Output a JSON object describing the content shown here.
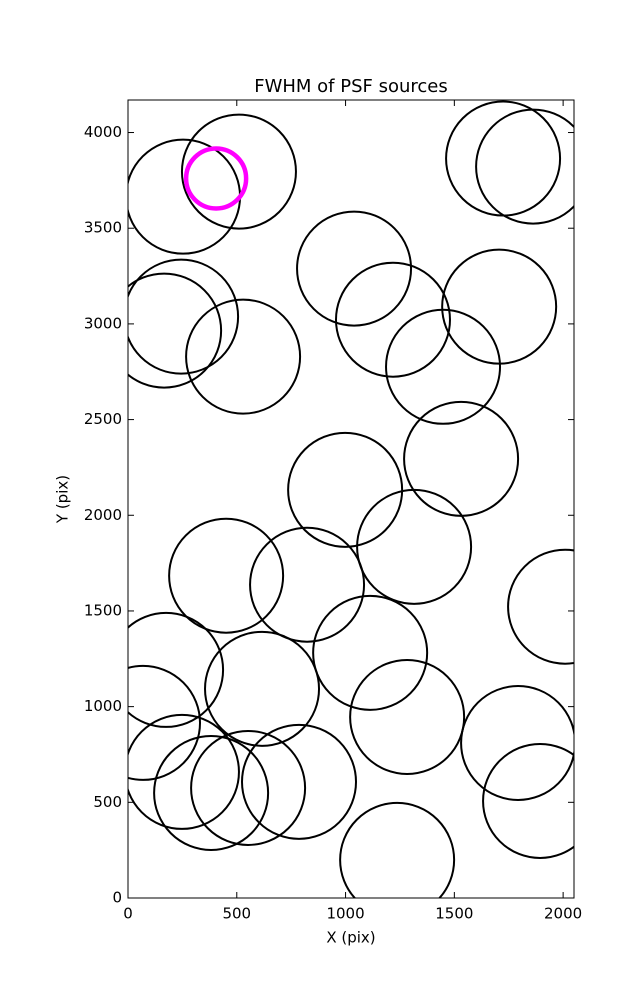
{
  "chart_data": {
    "type": "scatter",
    "title": "FWHM of PSF sources",
    "x_label": "X (pix)",
    "y_label": "Y (pix)",
    "series": [
      {
        "color": "#000000",
        "x": [
          253,
          510,
          1724,
          1862,
          1039,
          244,
          166,
          529,
          1218,
          1706,
          1448,
          1531,
          998,
          1315,
          451,
          823,
          2009,
          175,
          1113,
          616,
          69,
          1283,
          1793,
          248,
          382,
          552,
          786,
          1894,
          1237
        ],
        "values": [
          3665,
          3796,
          3864,
          3822,
          3289,
          3038,
          2965,
          2829,
          3022,
          3090,
          2776,
          2295,
          2133,
          1835,
          1684,
          1637,
          1522,
          1192,
          1281,
          1093,
          915,
          946,
          810,
          659,
          549,
          575,
          607,
          507,
          199
        ]
      },
      {
        "color": "#ff00ff",
        "x": [
          405
        ],
        "values": [
          3760
        ]
      }
    ],
    "xlim": [
      0,
      2050
    ],
    "ylim": [
      0,
      4170
    ],
    "xticks": [
      0,
      500,
      1000,
      1500,
      2000
    ],
    "yticks": [
      0,
      500,
      1000,
      1500,
      2000,
      2500,
      3000,
      3500,
      4000
    ]
  }
}
